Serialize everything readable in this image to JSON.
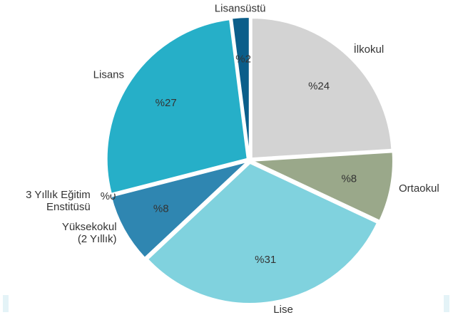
{
  "chart_data": {
    "type": "pie",
    "categories": [
      "İlkokul",
      "Ortaokul",
      "Lise",
      "Yüksekokul\n(2 Yıllık)",
      "3 Yıllık Eğitim\nEnstitüsü",
      "Lisans",
      "Lisansüstü"
    ],
    "values": [
      24,
      8,
      31,
      8,
      0,
      27,
      2
    ],
    "value_labels": [
      "%24",
      "%8",
      "%31",
      "%8",
      "%0",
      "%27",
      "%2"
    ],
    "colors": [
      "#d3d3d3",
      "#9aa88a",
      "#80d2de",
      "#2f86b1",
      "#8bd0dc",
      "#26afc8",
      "#0b5e8a"
    ]
  }
}
